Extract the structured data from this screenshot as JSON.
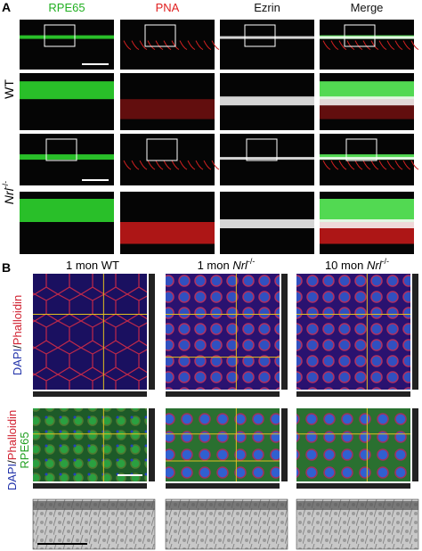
{
  "panel_a": {
    "label": "A",
    "columns": [
      "RPE65",
      "PNA",
      "Ezrin",
      "Merge"
    ],
    "rows": [
      {
        "label": "WT"
      },
      {
        "gene": "Nrl",
        "sup": "-/-"
      }
    ]
  },
  "panel_b": {
    "label": "B",
    "columns": [
      {
        "text": "1 mon WT"
      },
      {
        "prefix": "1 mon ",
        "gene": "Nrl",
        "sup": "-/-"
      },
      {
        "prefix": "10 mon ",
        "gene": "Nrl",
        "sup": "-/-"
      }
    ],
    "rows": [
      {
        "parts": [
          "DAPI",
          "/",
          "Phalloidin"
        ]
      },
      {
        "parts": [
          "DAPI",
          "/",
          "Phalloidin"
        ],
        "line2": "RPE65"
      }
    ]
  }
}
